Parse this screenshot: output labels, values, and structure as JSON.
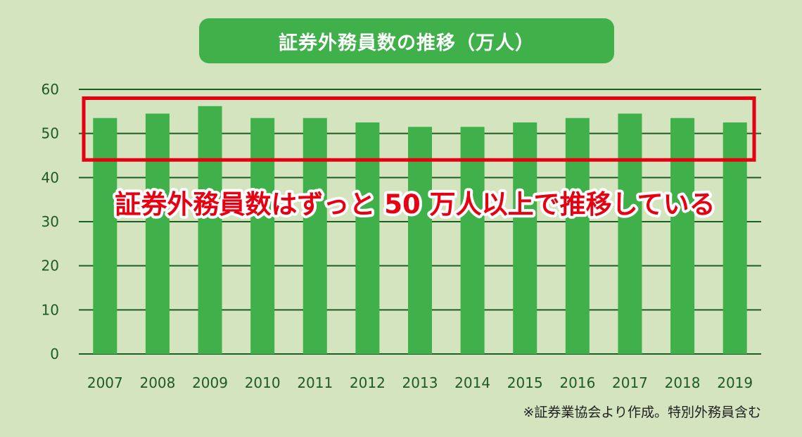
{
  "chart_data": {
    "type": "bar",
    "title": "証券外務員数の推移（万人）",
    "categories": [
      "2007",
      "2008",
      "2009",
      "2010",
      "2011",
      "2012",
      "2013",
      "2014",
      "2015",
      "2016",
      "2017",
      "2018",
      "2019"
    ],
    "values": [
      53.5,
      54.5,
      56.2,
      53.5,
      53.5,
      52.5,
      51.5,
      51.5,
      52.5,
      53.5,
      54.5,
      53.5,
      52.5
    ],
    "ylim": [
      0,
      60
    ],
    "yticks": [
      "0",
      "10",
      "20",
      "30",
      "40",
      "50",
      "60"
    ],
    "grid": true,
    "annotations": [
      {
        "text": "証券外務員数はずっと 50 万人以上で推移している",
        "highlight_range": [
          44,
          58
        ]
      }
    ],
    "note": "※証券業協会より作成。特別外務員含む"
  },
  "colors": {
    "background": "#d3e4bf",
    "bar": "#3fb04a",
    "gridline": "#1d5e22",
    "axis_text": "#1f5a23",
    "highlight": "#e60012",
    "annotation_text": "#e60012"
  }
}
